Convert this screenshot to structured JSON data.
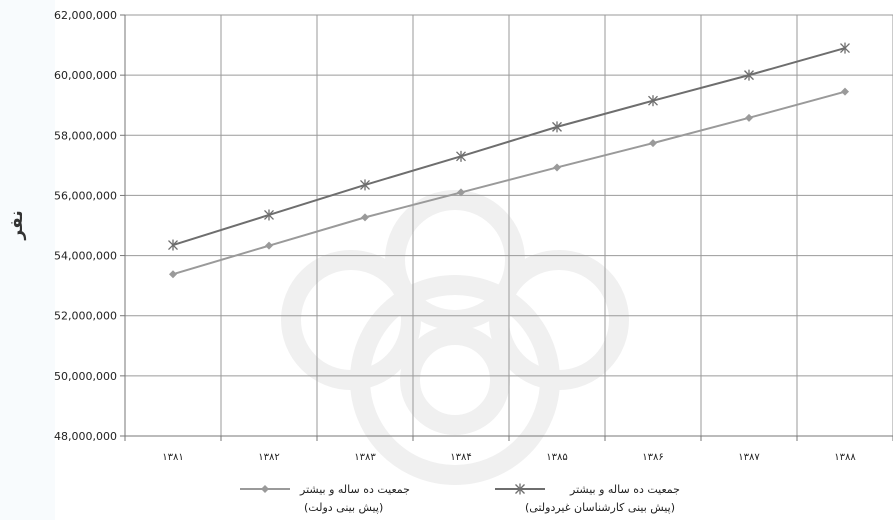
{
  "chart_data": {
    "type": "line",
    "ylabel": "نفر",
    "xlabel": "",
    "categories": [
      "۱۳۸۱",
      "۱۳۸۲",
      "۱۳۸۳",
      "۱۳۸۴",
      "۱۳۸۵",
      "۱۳۸۶",
      "۱۳۸۷",
      "۱۳۸۸"
    ],
    "ylim": [
      48000000,
      62000000
    ],
    "ytick_labels": [
      "48,000,000",
      "50,000,000",
      "52,000,000",
      "54,000,000",
      "56,000,000",
      "58,000,000",
      "60,000,000",
      "62,000,000"
    ],
    "grid": true,
    "legend_position": "bottom",
    "series": [
      {
        "name": "جمعیت ده ساله و بیشتر",
        "name_line2": "(پیش بینی کارشناسان غیردولتی)",
        "marker": "asterisk",
        "color": "#6e6e6e",
        "values": [
          54350000,
          55350000,
          56350000,
          57300000,
          58280000,
          59150000,
          60000000,
          60900000
        ]
      },
      {
        "name": "جمعیت ده ساله و بیشتر",
        "name_line2": "(پیش بینی دولت)",
        "marker": "diamond",
        "color": "#9a9a9a",
        "values": [
          53380000,
          54330000,
          55270000,
          56100000,
          56930000,
          57740000,
          58580000,
          59450000
        ]
      }
    ]
  }
}
